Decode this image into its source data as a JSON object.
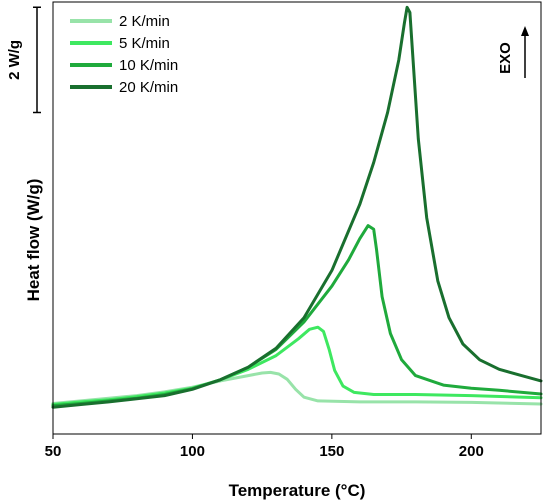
{
  "chart_data": {
    "type": "line",
    "xlabel": "Temperature (°C)",
    "ylabel": "Heat flow (W/g)",
    "xlim": [
      50,
      225
    ],
    "ylim": [
      -0.61,
      7.6
    ],
    "xticks": [
      50,
      100,
      150,
      200
    ],
    "yticks_shown": false,
    "grid": false,
    "legend_position": "top-left",
    "scale_bar": {
      "label": "2 W/g",
      "value": 2,
      "from": 5.5,
      "to": 7.5
    },
    "direction_label": "EXO",
    "series": [
      {
        "name": "2 K/min",
        "color": "#98e3a9",
        "points": [
          [
            50,
            -0.03
          ],
          [
            60,
            0.02
          ],
          [
            70,
            0.07
          ],
          [
            80,
            0.12
          ],
          [
            90,
            0.19
          ],
          [
            100,
            0.28
          ],
          [
            110,
            0.4
          ],
          [
            120,
            0.5
          ],
          [
            125,
            0.55
          ],
          [
            128,
            0.56
          ],
          [
            131,
            0.53
          ],
          [
            134,
            0.43
          ],
          [
            137,
            0.24
          ],
          [
            140,
            0.09
          ],
          [
            145,
            0.02
          ],
          [
            160,
            0.0
          ],
          [
            180,
            0.0
          ],
          [
            200,
            -0.01
          ],
          [
            225,
            -0.04
          ]
        ]
      },
      {
        "name": "5 K/min",
        "color": "#3ee860",
        "points": [
          [
            50,
            -0.05
          ],
          [
            60,
            0.0
          ],
          [
            70,
            0.04
          ],
          [
            80,
            0.1
          ],
          [
            90,
            0.17
          ],
          [
            100,
            0.26
          ],
          [
            110,
            0.42
          ],
          [
            120,
            0.62
          ],
          [
            130,
            0.88
          ],
          [
            138,
            1.2
          ],
          [
            142,
            1.38
          ],
          [
            145,
            1.42
          ],
          [
            147,
            1.34
          ],
          [
            149,
            1.0
          ],
          [
            151,
            0.6
          ],
          [
            154,
            0.3
          ],
          [
            158,
            0.18
          ],
          [
            165,
            0.14
          ],
          [
            180,
            0.14
          ],
          [
            200,
            0.12
          ],
          [
            225,
            0.08
          ]
        ]
      },
      {
        "name": "10 K/min",
        "color": "#1faa3c",
        "points": [
          [
            50,
            -0.07
          ],
          [
            60,
            -0.03
          ],
          [
            70,
            0.02
          ],
          [
            80,
            0.07
          ],
          [
            90,
            0.14
          ],
          [
            100,
            0.25
          ],
          [
            110,
            0.42
          ],
          [
            120,
            0.66
          ],
          [
            130,
            1.0
          ],
          [
            140,
            1.52
          ],
          [
            150,
            2.2
          ],
          [
            156,
            2.7
          ],
          [
            160,
            3.1
          ],
          [
            163,
            3.35
          ],
          [
            165,
            3.28
          ],
          [
            166,
            2.9
          ],
          [
            168,
            2.0
          ],
          [
            171,
            1.3
          ],
          [
            175,
            0.8
          ],
          [
            180,
            0.5
          ],
          [
            190,
            0.32
          ],
          [
            200,
            0.26
          ],
          [
            210,
            0.22
          ],
          [
            225,
            0.15
          ]
        ]
      },
      {
        "name": "20 K/min",
        "color": "#196f2e",
        "points": [
          [
            50,
            -0.1
          ],
          [
            60,
            -0.05
          ],
          [
            70,
            0.0
          ],
          [
            80,
            0.06
          ],
          [
            90,
            0.12
          ],
          [
            100,
            0.24
          ],
          [
            110,
            0.42
          ],
          [
            120,
            0.66
          ],
          [
            130,
            1.02
          ],
          [
            140,
            1.6
          ],
          [
            150,
            2.5
          ],
          [
            160,
            3.75
          ],
          [
            165,
            4.55
          ],
          [
            170,
            5.5
          ],
          [
            174,
            6.5
          ],
          [
            176,
            7.2
          ],
          [
            177,
            7.5
          ],
          [
            178,
            7.4
          ],
          [
            179,
            6.6
          ],
          [
            181,
            5.0
          ],
          [
            184,
            3.5
          ],
          [
            188,
            2.3
          ],
          [
            192,
            1.6
          ],
          [
            197,
            1.1
          ],
          [
            203,
            0.8
          ],
          [
            210,
            0.62
          ],
          [
            218,
            0.5
          ],
          [
            225,
            0.4
          ]
        ]
      }
    ]
  }
}
